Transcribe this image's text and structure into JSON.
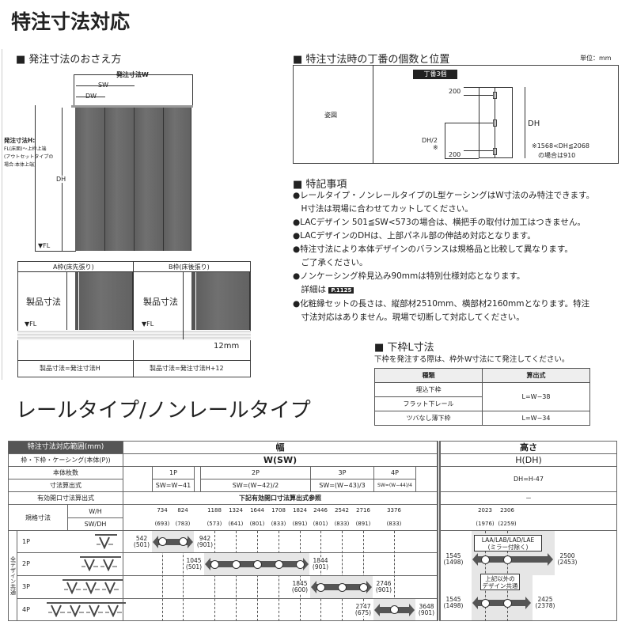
{
  "title": "特注寸法対応",
  "order_dims": {
    "heading": "■ 発注寸法のおさえ方",
    "w_label": "発注寸法W",
    "sw_label": "SW",
    "dw_label": "DW",
    "dh_label": "DH",
    "fl_label": "▼FL",
    "h_label": "発注寸法H:",
    "h_note1": "FL(床面)～上枠上端",
    "h_note2": "(アウトセットタイプの",
    "h_note3": "場合:本体上端)",
    "a_frame": "A枠(床先張り)",
    "b_frame": "B枠(床後張り)",
    "product_dim": "製品寸法",
    "mm12": "12mm",
    "a_formula": "製品寸法=発注寸法H",
    "b_formula": "製品寸法=発注寸法H+12"
  },
  "hinge": {
    "heading": "■ 特注寸法時の丁番の個数と位置",
    "unit": "単位：mm",
    "row_label": "姿図",
    "tag": "丁番3個",
    "top": "200",
    "bottom": "200",
    "mid": "DH/2",
    "mid_mark": "※",
    "dh": "DH",
    "note1": "※1568<DH≦2068",
    "note2": "の場合は910"
  },
  "notes": {
    "heading": "■ 特記事項",
    "lines": [
      "●レールタイプ・ノンレールタイプのL型ケーシングはW寸法のみ特注できます。",
      "　H寸法は現場に合わせてカットしてください。",
      "●LACデザイン 501≦SW<573の場合は、横把手の取付け加工はつきません。",
      "●LACデザインのDHは、上部パネル部の伸詰め対応となります。",
      "●特注寸法により本体デザインのバランスは規格品と比較して異なります。",
      "　ご了承ください。",
      "●ノンケーシング枠見込み90mmは特別仕様対応となります。",
      "　詳細は",
      "●化粧縁セットの長さは、縦部材2510mm、横部材2160mmとなります。特注",
      "　寸法対応はありません。現場で切断して対応してください。"
    ],
    "page_ref": "P.1125"
  },
  "lower_frame": {
    "heading": "■ 下枠L寸法",
    "sub": "下枠を発注する際は、枠外W寸法にて発注してください。",
    "headers": [
      "種類",
      "算出式"
    ],
    "rows": [
      [
        "埋込下枠",
        "L=W−38"
      ],
      [
        "フラット下レール",
        ""
      ],
      [
        "ツバなし薄下枠",
        "L=W−34"
      ]
    ]
  },
  "subtitle": "レールタイプ/ノンレールタイプ",
  "range_table": {
    "corner": "特注寸法対応範囲(mm)",
    "width_head": "幅",
    "height_head": "高さ",
    "frame_label": "枠・下枠・ケーシング(本体(P))",
    "w_sw": "W(SW)",
    "h_dh": "H(DH)",
    "panels_label": "本体枚数",
    "panels": [
      "1P",
      "2P",
      "3P",
      "4P"
    ],
    "formula_label": "寸法算出式",
    "formulas": [
      "SW=W−41",
      "SW=(W−42)/2",
      "SW=(W−43)/3",
      "SW=(W−44)/4"
    ],
    "h_formula": "DH=H-47",
    "opening_label": "有効開口寸法算出式",
    "opening_value": "下記有効開口寸法算出式参照",
    "opening_h": "－",
    "std_label": "規格寸法",
    "wh_label": "W/H",
    "swdh_label": "SW/DH",
    "std_w": [
      "734",
      "824",
      "1188",
      "1324",
      "1644",
      "1708",
      "1824",
      "2446",
      "2542",
      "2716",
      "3376"
    ],
    "std_sw": [
      "(693)",
      "(783)",
      "(573)",
      "(641)",
      "(801)",
      "(833)",
      "(891)",
      "(801)",
      "(833)",
      "(891)",
      "(833)"
    ],
    "std_h": [
      "2023",
      "2306"
    ],
    "std_dh": [
      "(1976)",
      "(2259)"
    ],
    "common_label": "全デザイン共通",
    "rows": [
      {
        "label": "1P",
        "icons": 1,
        "min": "542",
        "min_sw": "(501)",
        "max": "942",
        "max_sw": "(901)"
      },
      {
        "label": "2P",
        "icons": 2,
        "min": "1045",
        "min_sw": "(501)",
        "max": "1844",
        "max_sw": "(901)"
      },
      {
        "label": "3P",
        "icons": 3,
        "min": "1845",
        "min_sw": "(600)",
        "max": "2746",
        "max_sw": "(901)"
      },
      {
        "label": "4P",
        "icons": 4,
        "min": "2747",
        "min_sw": "(675)",
        "max": "3648",
        "max_sw": "(901)"
      }
    ],
    "height_ranges": [
      {
        "box1": "LAA/LAB/LAD/LAE",
        "box2": "(ミラー付除く)",
        "min": "1545",
        "min_dh": "(1498)",
        "max": "2500",
        "max_dh": "(2453)"
      },
      {
        "box1": "上記以外の",
        "box2": "デザイン共通",
        "min": "1545",
        "min_dh": "(1498)",
        "max": "2425",
        "max_dh": "(2378)"
      }
    ]
  }
}
